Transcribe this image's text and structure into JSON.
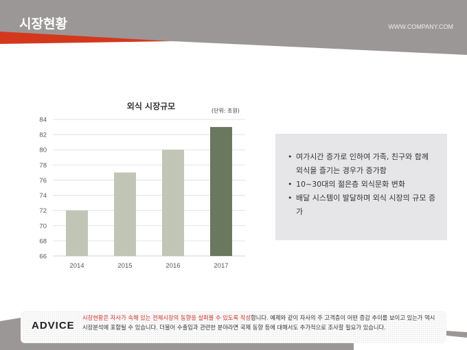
{
  "header": {
    "title": "시장현황",
    "site": "WWW.COMPANY.COM"
  },
  "colors": {
    "header_gray": "#9b9797",
    "accent_red": "#d3381c",
    "bar_light": "#c1c5b6",
    "bar_dark": "#6b7860"
  },
  "chart_data": {
    "type": "bar",
    "title": "외식 시장규모",
    "unit_label": "(단위: 조원)",
    "categories": [
      "2014",
      "2015",
      "2016",
      "2017"
    ],
    "values": [
      72,
      77,
      80,
      83
    ],
    "highlight_index": 3,
    "ylim": [
      66,
      84
    ],
    "yticks": [
      66,
      68,
      70,
      72,
      74,
      76,
      78,
      80,
      82,
      84
    ],
    "grid": true,
    "xlabel": "",
    "ylabel": ""
  },
  "info": {
    "bullets": [
      "여가시간 증가로 인하여 가족, 친구와 함께 외식을 즐기는 경우가 증가함",
      "10~30대의 젊은층 외식문화 변화",
      "배달 시스템이 발달하며 외식 시장의 규모 증가"
    ]
  },
  "advice": {
    "label": "ADVICE",
    "highlight": "시장현황은 자사가 속해 있는 전체시장의 동향을 살펴볼 수 있도록 작성",
    "text": "합니다. 예제와 같이 자사의 주 고객층이 어떤 증감 추이를 보이고 있는가 역시 시장분석에 포함될 수 있습니다. 더불어 수출입과 관련한 분야라면 국제 동향 등에 대해서도 추가적으로 조사할 필요가 있습니다."
  }
}
